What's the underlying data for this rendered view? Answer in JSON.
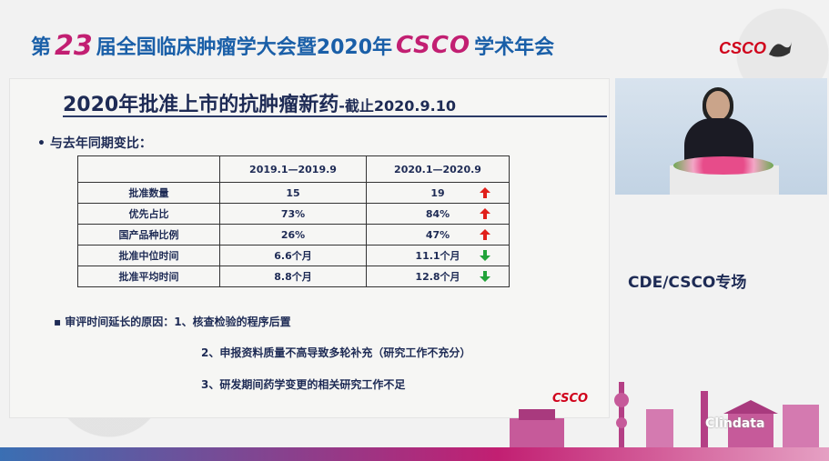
{
  "header": {
    "prefix": "第",
    "number": "23",
    "middle": "届全国临床肿瘤学大会暨2020年",
    "csco": "CSCO",
    "suffix": "学术年会",
    "logo": "CSCO"
  },
  "slide": {
    "title_main": "2020年批准上市的抗肿瘤新药",
    "title_sub": "-截止2020.9.10",
    "bullet1": "•  与去年同期变比：",
    "table": {
      "headers": [
        "",
        "2019.1—2019.9",
        "2020.1—2020.9"
      ],
      "rows": [
        {
          "label": "批准数量",
          "v2019": "15",
          "v2020": "19",
          "trend": "up"
        },
        {
          "label": "优先占比",
          "v2019": "73%",
          "v2020": "84%",
          "trend": "up"
        },
        {
          "label": "国产品种比例",
          "v2019": "26%",
          "v2020": "47%",
          "trend": "up"
        },
        {
          "label": "批准中位时间",
          "v2019": "6.6个月",
          "v2020": "11.1个月",
          "trend": "down"
        },
        {
          "label": "批准平均时间",
          "v2019": "8.8个月",
          "v2020": "12.8个月",
          "trend": "down"
        }
      ]
    },
    "bullet2": "▪  审评时间延长的原因：1、核查检验的程序后置",
    "reason2": "2、申报资料质量不高导致多轮补充（研究工作不充分）",
    "reason3": "3、研发期间药学变更的相关研究工作不足",
    "logo": "CSCO"
  },
  "side_label": "CDE/CSCO专场",
  "watermark": "Clindata",
  "colors": {
    "up_arrow": "#e0201b",
    "down_arrow": "#22a33a",
    "title": "#1e2b55",
    "accent": "#c21f72"
  }
}
